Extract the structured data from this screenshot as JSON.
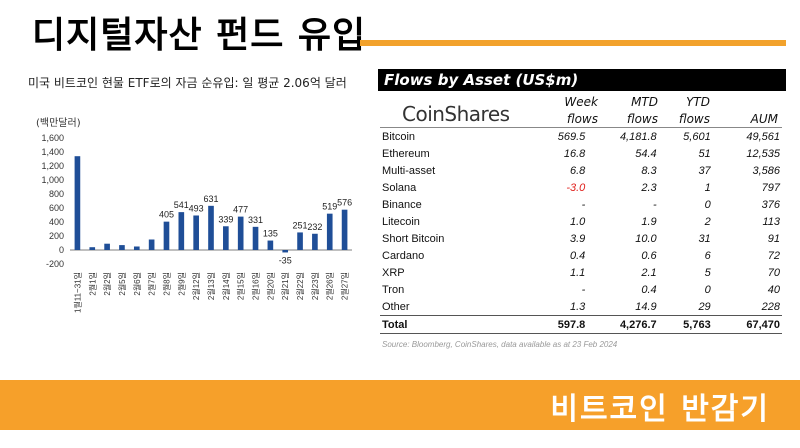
{
  "page": {
    "title": "디지털자산 펀드 유입",
    "banner": "비트코인 반감기"
  },
  "colors": {
    "accent": "#f6a02a",
    "bar": "#1f4e97",
    "negative": "#e0201c",
    "table_header_bg": "#000000"
  },
  "left_chart": {
    "title": "미국 비트코인 현물 ETF로의 자금 순유입: 일 평균 2.06억 달러",
    "unit": "(백만달러)",
    "chart_data": {
      "type": "bar",
      "title": "미국 비트코인 현물 ETF로의 자금 순유입: 일 평균 2.06억 달러",
      "ylabel": "(백만달러)",
      "xlabel": "",
      "ylim": [
        -200,
        1600
      ],
      "yticks": [
        -200,
        0,
        200,
        400,
        600,
        800,
        1000,
        1200,
        1400,
        1600
      ],
      "grid": false,
      "categories": [
        "1월11~31일",
        "2월1일",
        "2월2일",
        "2월5일",
        "2월6일",
        "2월7일",
        "2월8일",
        "2월9일",
        "2월12일",
        "2월13일",
        "2월14일",
        "2월15일",
        "2월16일",
        "2월20일",
        "2월21일",
        "2월22일",
        "2월23일",
        "2월26일",
        "2월27일"
      ],
      "values": [
        1340,
        40,
        90,
        70,
        50,
        150,
        405,
        541,
        493,
        631,
        339,
        477,
        331,
        135,
        -35,
        251,
        232,
        519,
        576
      ],
      "data_labels": [
        null,
        null,
        null,
        null,
        null,
        null,
        "405",
        "541",
        "493",
        "631",
        "339",
        "477",
        "331",
        "135",
        "-35",
        "251",
        "232",
        "519",
        "576"
      ]
    }
  },
  "table": {
    "title": "Flows by Asset (US$m)",
    "logo": "CoinShares",
    "headers": [
      {
        "line1": "Week",
        "line2": "flows"
      },
      {
        "line1": "MTD",
        "line2": "flows"
      },
      {
        "line1": "YTD",
        "line2": "flows"
      },
      {
        "line1": "",
        "line2": "AUM"
      }
    ],
    "rows": [
      {
        "name": "Bitcoin",
        "week": "569.5",
        "mtd": "4,181.8",
        "ytd": "5,601",
        "aum": "49,561"
      },
      {
        "name": "Ethereum",
        "week": "16.8",
        "mtd": "54.4",
        "ytd": "51",
        "aum": "12,535"
      },
      {
        "name": "Multi-asset",
        "week": "6.8",
        "mtd": "8.3",
        "ytd": "37",
        "aum": "3,586"
      },
      {
        "name": "Solana",
        "week": "-3.0",
        "mtd": "2.3",
        "ytd": "1",
        "aum": "797"
      },
      {
        "name": "Binance",
        "week": "-",
        "mtd": "-",
        "ytd": "0",
        "aum": "376"
      },
      {
        "name": "Litecoin",
        "week": "1.0",
        "mtd": "1.9",
        "ytd": "2",
        "aum": "113"
      },
      {
        "name": "Short Bitcoin",
        "week": "3.9",
        "mtd": "10.0",
        "ytd": "31",
        "aum": "91"
      },
      {
        "name": "Cardano",
        "week": "0.4",
        "mtd": "0.6",
        "ytd": "6",
        "aum": "72"
      },
      {
        "name": "XRP",
        "week": "1.1",
        "mtd": "2.1",
        "ytd": "5",
        "aum": "70"
      },
      {
        "name": "Tron",
        "week": "-",
        "mtd": "0.4",
        "ytd": "0",
        "aum": "40"
      },
      {
        "name": "Other",
        "week": "1.3",
        "mtd": "14.9",
        "ytd": "29",
        "aum": "228"
      }
    ],
    "total": {
      "name": "Total",
      "week": "597.8",
      "mtd": "4,276.7",
      "ytd": "5,763",
      "aum": "67,470"
    },
    "source": "Source: Bloomberg, CoinShares, data available as at 23 Feb 2024"
  }
}
